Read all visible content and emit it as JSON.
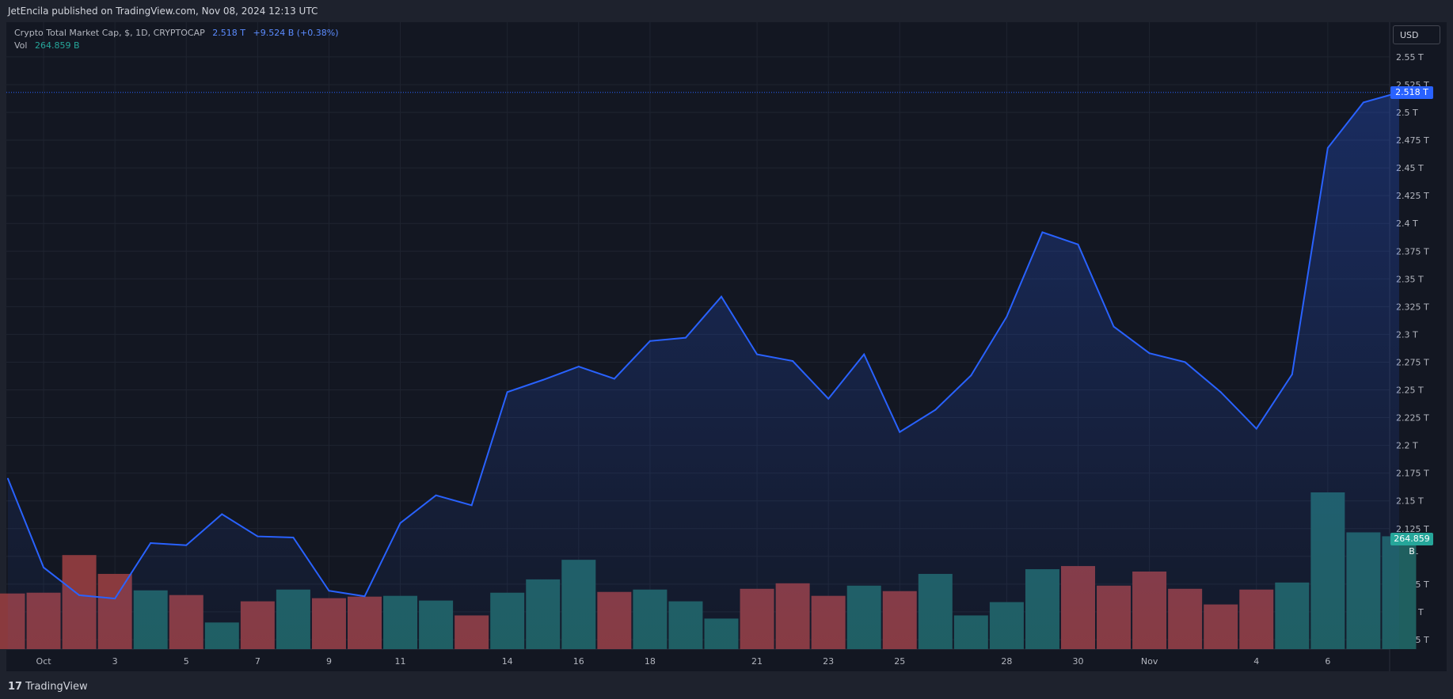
{
  "header": {
    "published_text": "JetEncila published on TradingView.com, Nov 08, 2024 12:13 UTC"
  },
  "legend": {
    "symbol": "Crypto Total Market Cap, $, 1D, CRYPTOCAP",
    "last": "2.518 T",
    "change": "+9.524 B (+0.38%)",
    "vol_label": "Vol",
    "vol_value": "264.859 B"
  },
  "currency_button": "USD",
  "last_price_badge": "2.518 T",
  "last_volume_badge": "264.859 B",
  "footer": {
    "logo_text": "TradingView"
  },
  "colors": {
    "line": "#2962ff",
    "vol_up": "#1f5f5f",
    "vol_down": "#8a3a3e",
    "badge_price": "#2962ff",
    "badge_vol": "#26a69a"
  },
  "chart_data": {
    "type": "line",
    "price_axis": {
      "min": 2.0,
      "max": 2.575,
      "ticks": [
        "2.025 T",
        "2.05 T",
        "2.075 T",
        "2.1 T",
        "2.125 T",
        "2.15 T",
        "2.175 T",
        "2.2 T",
        "2.225 T",
        "2.25 T",
        "2.275 T",
        "2.3 T",
        "2.325 T",
        "2.35 T",
        "2.375 T",
        "2.4 T",
        "2.425 T",
        "2.45 T",
        "2.475 T",
        "2.5 T",
        "2.525 T",
        "2.55 T"
      ],
      "tick_values": [
        2.025,
        2.05,
        2.075,
        2.1,
        2.125,
        2.15,
        2.175,
        2.2,
        2.225,
        2.25,
        2.275,
        2.3,
        2.325,
        2.35,
        2.375,
        2.4,
        2.425,
        2.45,
        2.475,
        2.5,
        2.525,
        2.55
      ]
    },
    "time_axis": {
      "labels": [
        {
          "text": "Oct",
          "day": 1
        },
        {
          "text": "3",
          "day": 3
        },
        {
          "text": "5",
          "day": 5
        },
        {
          "text": "7",
          "day": 7
        },
        {
          "text": "9",
          "day": 9
        },
        {
          "text": "11",
          "day": 11
        },
        {
          "text": "14",
          "day": 14
        },
        {
          "text": "16",
          "day": 16
        },
        {
          "text": "18",
          "day": 18
        },
        {
          "text": "21",
          "day": 21
        },
        {
          "text": "23",
          "day": 23
        },
        {
          "text": "25",
          "day": 25
        },
        {
          "text": "28",
          "day": 28
        },
        {
          "text": "30",
          "day": 30
        },
        {
          "text": "Nov",
          "day": 32
        },
        {
          "text": "4",
          "day": 35
        },
        {
          "text": "6",
          "day": 37
        }
      ]
    },
    "days": [
      0,
      1,
      2,
      3,
      4,
      5,
      6,
      7,
      8,
      9,
      10,
      11,
      12,
      13,
      14,
      15,
      16,
      17,
      18,
      19,
      20,
      21,
      22,
      23,
      24,
      25,
      26,
      27,
      28,
      29,
      30,
      31,
      32,
      33,
      34,
      35,
      36,
      37,
      38,
      39
    ],
    "series": [
      {
        "values": [
          2.17,
          2.09,
          2.065,
          2.062,
          2.112,
          2.11,
          2.138,
          2.118,
          2.117,
          2.069,
          2.064,
          2.13,
          2.155,
          2.146,
          2.248,
          2.259,
          2.271,
          2.26,
          2.294,
          2.297,
          2.334,
          2.282,
          2.276,
          2.242,
          2.282,
          2.212,
          2.232,
          2.263,
          2.316,
          2.392,
          2.381,
          2.307,
          2.283,
          2.275,
          2.248,
          2.215,
          2.264,
          2.468,
          2.509,
          2.518
        ]
      }
    ],
    "volume": {
      "values_px": [
        0.355,
        0.36,
        0.6,
        0.48,
        0.375,
        0.345,
        0.17,
        0.305,
        0.38,
        0.325,
        0.335,
        0.34,
        0.31,
        0.215,
        0.36,
        0.445,
        0.57,
        0.365,
        0.38,
        0.305,
        0.195,
        0.385,
        0.42,
        0.34,
        0.405,
        0.37,
        0.48,
        0.215,
        0.3,
        0.51,
        0.53,
        0.405,
        0.495,
        0.385,
        0.285,
        0.38,
        0.425,
        1.0,
        0.745,
        0.72
      ],
      "up": [
        false,
        false,
        false,
        false,
        true,
        false,
        true,
        false,
        true,
        false,
        false,
        true,
        true,
        false,
        true,
        true,
        true,
        false,
        true,
        true,
        true,
        false,
        false,
        false,
        true,
        false,
        true,
        true,
        true,
        true,
        false,
        false,
        false,
        false,
        false,
        false,
        true,
        true,
        true,
        true
      ]
    }
  }
}
